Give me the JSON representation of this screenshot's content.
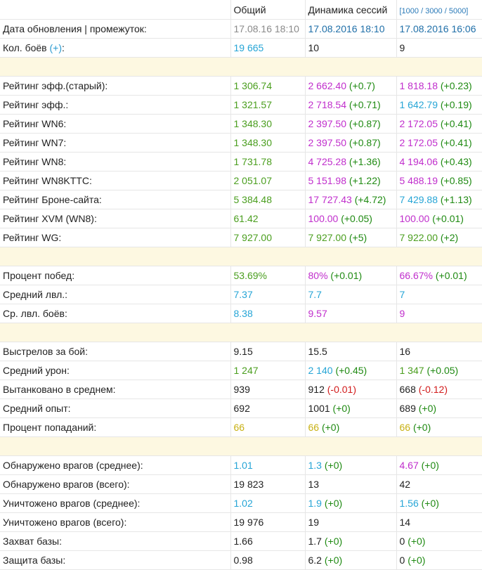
{
  "header": {
    "col_total": "Общий",
    "col_session": "Динамика сессий",
    "col_filter": "[1000 / 3000 / 5000]"
  },
  "colors": {
    "green": "#4a9e1e",
    "purple": "#c02ecc",
    "cyan": "#26a5d6",
    "yellow": "#c8b012",
    "black": "#222222",
    "delta_pos": "#1f8a12",
    "delta_neg": "#d21c1c",
    "separator": "#fdf8e1"
  },
  "sections": [
    {
      "rows": [
        {
          "label": "Дата обновления | промежуток:",
          "date": true,
          "total": {
            "v": "17.08.16 18:10"
          },
          "s1": {
            "v": "17.08.2016 18:10"
          },
          "s2": {
            "v": "17.08.2016 16:06"
          }
        },
        {
          "label": "Кол. боёв",
          "label_link": "(+)",
          "label_suffix": ":",
          "total": {
            "v": "19 665",
            "c": "cyan"
          },
          "s1": {
            "v": "10",
            "c": "black"
          },
          "s2": {
            "v": "9",
            "c": "black"
          }
        }
      ]
    },
    {
      "rows": [
        {
          "label": "Рейтинг эфф.(старый):",
          "total": {
            "v": "1 306.74",
            "c": "green"
          },
          "s1": {
            "v": "2 662.40",
            "c": "purple",
            "d": "(+0.7)",
            "dc": "pos"
          },
          "s2": {
            "v": "1 818.18",
            "c": "purple",
            "d": "(+0.23)",
            "dc": "pos"
          }
        },
        {
          "label": "Рейтинг эфф.:",
          "total": {
            "v": "1 321.57",
            "c": "green"
          },
          "s1": {
            "v": "2 718.54",
            "c": "purple",
            "d": "(+0.71)",
            "dc": "pos"
          },
          "s2": {
            "v": "1 642.79",
            "c": "cyan",
            "d": "(+0.19)",
            "dc": "pos"
          }
        },
        {
          "label": "Рейтинг WN6:",
          "total": {
            "v": "1 348.30",
            "c": "green"
          },
          "s1": {
            "v": "2 397.50",
            "c": "purple",
            "d": "(+0.87)",
            "dc": "pos"
          },
          "s2": {
            "v": "2 172.05",
            "c": "purple",
            "d": "(+0.41)",
            "dc": "pos"
          }
        },
        {
          "label": "Рейтинг WN7:",
          "total": {
            "v": "1 348.30",
            "c": "green"
          },
          "s1": {
            "v": "2 397.50",
            "c": "purple",
            "d": "(+0.87)",
            "dc": "pos"
          },
          "s2": {
            "v": "2 172.05",
            "c": "purple",
            "d": "(+0.41)",
            "dc": "pos"
          }
        },
        {
          "label": "Рейтинг WN8:",
          "total": {
            "v": "1 731.78",
            "c": "green"
          },
          "s1": {
            "v": "4 725.28",
            "c": "purple",
            "d": "(+1.36)",
            "dc": "pos"
          },
          "s2": {
            "v": "4 194.06",
            "c": "purple",
            "d": "(+0.43)",
            "dc": "pos"
          }
        },
        {
          "label": "Рейтинг WN8KTTC:",
          "total": {
            "v": "2 051.07",
            "c": "green"
          },
          "s1": {
            "v": "5 151.98",
            "c": "purple",
            "d": "(+1.22)",
            "dc": "pos"
          },
          "s2": {
            "v": "5 488.19",
            "c": "purple",
            "d": "(+0.85)",
            "dc": "pos"
          }
        },
        {
          "label": "Рейтинг Броне-сайта:",
          "total": {
            "v": "5 384.48",
            "c": "green"
          },
          "s1": {
            "v": "17 727.43",
            "c": "purple",
            "d": "(+4.72)",
            "dc": "pos"
          },
          "s2": {
            "v": "7 429.88",
            "c": "cyan",
            "d": "(+1.13)",
            "dc": "pos"
          }
        },
        {
          "label": "Рейтинг XVM (WN8):",
          "total": {
            "v": "61.42",
            "c": "green"
          },
          "s1": {
            "v": "100.00",
            "c": "purple",
            "d": "(+0.05)",
            "dc": "pos"
          },
          "s2": {
            "v": "100.00",
            "c": "purple",
            "d": "(+0.01)",
            "dc": "pos"
          }
        },
        {
          "label": "Рейтинг WG:",
          "total": {
            "v": "7 927.00",
            "c": "green"
          },
          "s1": {
            "v": "7 927.00",
            "c": "green",
            "d": "(+5)",
            "dc": "pos"
          },
          "s2": {
            "v": "7 922.00",
            "c": "green",
            "d": "(+2)",
            "dc": "pos"
          }
        }
      ]
    },
    {
      "rows": [
        {
          "label": "Процент побед:",
          "total": {
            "v": "53.69%",
            "c": "green"
          },
          "s1": {
            "v": "80%",
            "c": "purple",
            "d": "(+0.01)",
            "dc": "pos"
          },
          "s2": {
            "v": "66.67%",
            "c": "purple",
            "d": "(+0.01)",
            "dc": "pos"
          }
        },
        {
          "label": "Средний лвл.:",
          "total": {
            "v": "7.37",
            "c": "cyan"
          },
          "s1": {
            "v": "7.7",
            "c": "cyan"
          },
          "s2": {
            "v": "7",
            "c": "cyan"
          }
        },
        {
          "label": "Ср. лвл. боёв:",
          "total": {
            "v": "8.38",
            "c": "cyan"
          },
          "s1": {
            "v": "9.57",
            "c": "purple"
          },
          "s2": {
            "v": "9",
            "c": "purple"
          }
        }
      ]
    },
    {
      "rows": [
        {
          "label": "Выстрелов за бой:",
          "total": {
            "v": "9.15",
            "c": "black"
          },
          "s1": {
            "v": "15.5",
            "c": "black"
          },
          "s2": {
            "v": "16",
            "c": "black"
          }
        },
        {
          "label": "Средний урон:",
          "total": {
            "v": "1 247",
            "c": "green"
          },
          "s1": {
            "v": "2 140",
            "c": "cyan",
            "d": "(+0.45)",
            "dc": "pos"
          },
          "s2": {
            "v": "1 347",
            "c": "green",
            "d": "(+0.05)",
            "dc": "pos"
          }
        },
        {
          "label": "Вытанковано в среднем:",
          "total": {
            "v": "939",
            "c": "black"
          },
          "s1": {
            "v": "912",
            "c": "black",
            "d": "(-0.01)",
            "dc": "neg"
          },
          "s2": {
            "v": "668",
            "c": "black",
            "d": "(-0.12)",
            "dc": "neg"
          }
        },
        {
          "label": "Средний опыт:",
          "total": {
            "v": "692",
            "c": "black"
          },
          "s1": {
            "v": "1001",
            "c": "black",
            "d": "(+0)",
            "dc": "pos"
          },
          "s2": {
            "v": "689",
            "c": "black",
            "d": "(+0)",
            "dc": "pos"
          }
        },
        {
          "label": "Процент попаданий:",
          "total": {
            "v": "66",
            "c": "yellow"
          },
          "s1": {
            "v": "66",
            "c": "yellow",
            "d": "(+0)",
            "dc": "pos"
          },
          "s2": {
            "v": "66",
            "c": "yellow",
            "d": "(+0)",
            "dc": "pos"
          }
        }
      ]
    },
    {
      "rows": [
        {
          "label": "Обнаружено врагов (среднее):",
          "total": {
            "v": "1.01",
            "c": "cyan"
          },
          "s1": {
            "v": "1.3",
            "c": "cyan",
            "d": "(+0)",
            "dc": "pos"
          },
          "s2": {
            "v": "4.67",
            "c": "purple",
            "d": "(+0)",
            "dc": "pos"
          }
        },
        {
          "label": "Обнаружено врагов (всего):",
          "total": {
            "v": "19 823",
            "c": "black"
          },
          "s1": {
            "v": "13",
            "c": "black"
          },
          "s2": {
            "v": "42",
            "c": "black"
          }
        },
        {
          "label": "Уничтожено врагов (среднее):",
          "total": {
            "v": "1.02",
            "c": "cyan"
          },
          "s1": {
            "v": "1.9",
            "c": "cyan",
            "d": "(+0)",
            "dc": "pos"
          },
          "s2": {
            "v": "1.56",
            "c": "cyan",
            "d": "(+0)",
            "dc": "pos"
          }
        },
        {
          "label": "Уничтожено врагов (всего):",
          "total": {
            "v": "19 976",
            "c": "black"
          },
          "s1": {
            "v": "19",
            "c": "black"
          },
          "s2": {
            "v": "14",
            "c": "black"
          }
        },
        {
          "label": "Захват базы:",
          "total": {
            "v": "1.66",
            "c": "black"
          },
          "s1": {
            "v": "1.7",
            "c": "black",
            "d": "(+0)",
            "dc": "pos"
          },
          "s2": {
            "v": "0",
            "c": "black",
            "d": "(+0)",
            "dc": "pos"
          }
        },
        {
          "label": "Защита базы:",
          "total": {
            "v": "0.98",
            "c": "black"
          },
          "s1": {
            "v": "6.2",
            "c": "black",
            "d": "(+0)",
            "dc": "pos"
          },
          "s2": {
            "v": "0",
            "c": "black",
            "d": "(+0)",
            "dc": "pos"
          }
        }
      ]
    }
  ]
}
